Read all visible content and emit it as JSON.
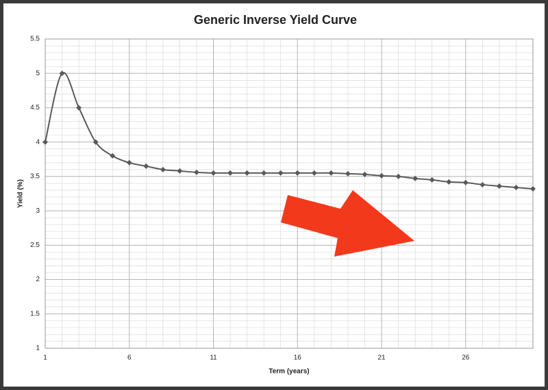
{
  "chart_data": {
    "type": "line",
    "title": "Generic  Inverse Yield Curve",
    "x_label": "Term (years)",
    "y_label": "Yield (%)",
    "x": [
      1,
      2,
      3,
      4,
      5,
      6,
      7,
      8,
      9,
      10,
      11,
      12,
      13,
      14,
      15,
      16,
      17,
      18,
      19,
      20,
      21,
      22,
      23,
      24,
      25,
      26,
      27,
      28,
      29,
      30
    ],
    "series": [
      {
        "name": "Yield",
        "color": "#595959",
        "values": [
          4.0,
          5.0,
          4.5,
          4.0,
          3.8,
          3.7,
          3.65,
          3.6,
          3.58,
          3.56,
          3.55,
          3.55,
          3.55,
          3.55,
          3.55,
          3.55,
          3.55,
          3.55,
          3.54,
          3.53,
          3.51,
          3.5,
          3.47,
          3.45,
          3.42,
          3.41,
          3.38,
          3.36,
          3.34,
          3.32
        ]
      }
    ],
    "xlim": [
      1,
      30
    ],
    "xticks": [
      1,
      6,
      11,
      16,
      21,
      26
    ],
    "ylim": [
      1,
      5.5
    ],
    "yticks": [
      1,
      1.5,
      2,
      2.5,
      3,
      3.5,
      4,
      4.5,
      5,
      5.5
    ],
    "grid": true
  }
}
